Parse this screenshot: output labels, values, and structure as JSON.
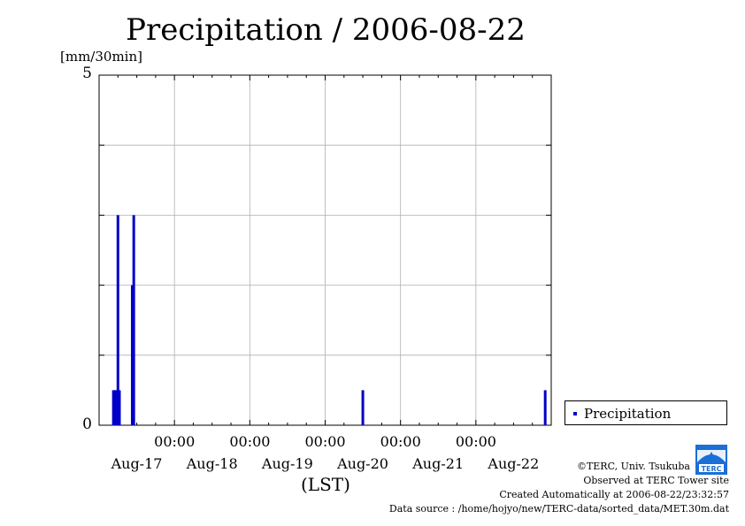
{
  "chart_data": {
    "type": "bar",
    "title": "Precipitation / 2006-08-22",
    "ylabel": "[mm/30min]",
    "xlabel": "(LST)",
    "ylim": [
      0,
      5
    ],
    "yticks": [
      {
        "value": 0,
        "label": "0"
      },
      {
        "value": 5,
        "label": "5"
      }
    ],
    "xrange_days": [
      0,
      6
    ],
    "xticks": [
      {
        "day": 1,
        "time": "00:00",
        "date": "Aug-18"
      },
      {
        "day": 2,
        "time": "00:00",
        "date": "Aug-19"
      },
      {
        "day": 3,
        "time": "00:00",
        "date": "Aug-20"
      },
      {
        "day": 4,
        "time": "00:00",
        "date": "Aug-21"
      },
      {
        "day": 5,
        "time": "00:00",
        "date": "Aug-22"
      }
    ],
    "first_date_label": "Aug-17",
    "series": [
      {
        "name": "Precipitation",
        "color": "#0000c8",
        "points": [
          {
            "day": 0.19,
            "value": 0.5
          },
          {
            "day": 0.21,
            "value": 0.5
          },
          {
            "day": 0.23,
            "value": 0.5
          },
          {
            "day": 0.25,
            "value": 3.0
          },
          {
            "day": 0.27,
            "value": 0.5
          },
          {
            "day": 0.44,
            "value": 2.0
          },
          {
            "day": 0.46,
            "value": 3.0
          },
          {
            "day": 3.5,
            "value": 0.5
          },
          {
            "day": 5.92,
            "value": 0.5
          }
        ]
      }
    ]
  },
  "legend": {
    "label": "Precipitation"
  },
  "credits": {
    "copyright": "©TERC, Univ. Tsukuba",
    "site": "Observed at TERC Tower site",
    "created": "Created Automatically at 2006-08-22/23:32:57",
    "source": "Data source : /home/hojyo/new/TERC-data/sorted_data/MET.30m.dat"
  },
  "logo": {
    "text": "TERC",
    "color": "#1b6fd6"
  }
}
